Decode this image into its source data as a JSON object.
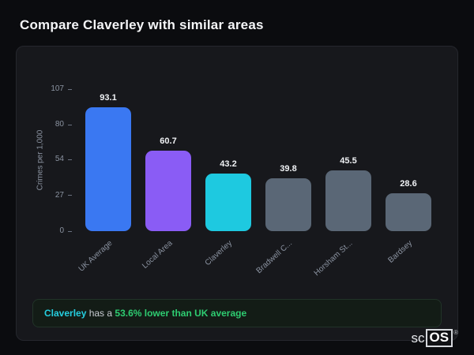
{
  "page": {
    "title": "Compare Claverley with similar areas"
  },
  "chart_data": {
    "type": "bar",
    "categories": [
      "UK Average",
      "Local Area",
      "Claverley",
      "Bradwell C...",
      "Horsham St...",
      "Bardsey"
    ],
    "values": [
      93.1,
      60.7,
      43.2,
      39.8,
      45.5,
      28.6
    ],
    "bar_colors": [
      "#3a78f2",
      "#8a5cf5",
      "#1ec9e0",
      "#5a6776",
      "#5a6776",
      "#5a6776"
    ],
    "title": "",
    "xlabel": "",
    "ylabel": "Crimes per 1,000",
    "yticks": [
      107,
      80,
      54,
      27,
      0
    ],
    "ylim": [
      0,
      107
    ],
    "grid": false,
    "legend": false
  },
  "note": {
    "highlight": "Claverley",
    "middle": " has a ",
    "stat": "53.6% lower than UK average"
  },
  "logo": {
    "prefix": "sc",
    "boxed": "OS",
    "registered": "®"
  }
}
